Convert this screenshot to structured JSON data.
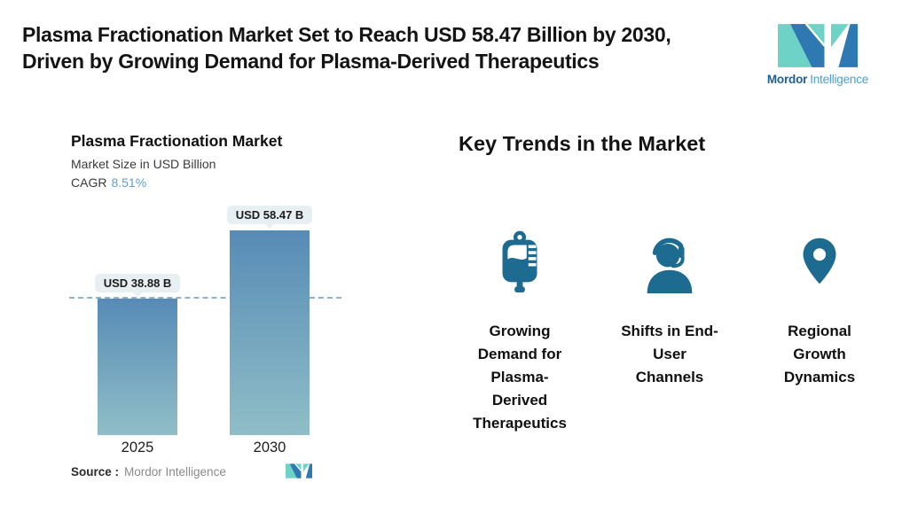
{
  "header": {
    "title_lines": [
      "Plasma Fractionation Market Set to Reach USD 58.47 Billion by 2030,",
      "Driven by Growing Demand for Plasma-Derived Therapeutics"
    ],
    "logo_bold": "Mordor",
    "logo_light": "Intelligence"
  },
  "chart": {
    "title": "Plasma Fractionation Market",
    "subtitle": "Market Size in USD Billion",
    "cagr_label": "CAGR",
    "cagr_value": "8.51%",
    "source_label": "Source :",
    "source_value": "Mordor Intelligence"
  },
  "chart_data": {
    "type": "bar",
    "title": "Plasma Fractionation Market",
    "subtitle": "Market Size in USD Billion",
    "categories": [
      "2025",
      "2030"
    ],
    "values": [
      38.88,
      58.47
    ],
    "value_labels": [
      "USD 38.88 B",
      "USD 58.47 B"
    ],
    "cagr_percent": 8.51,
    "ylim": [
      0,
      65
    ],
    "grid": false,
    "legend": "none",
    "annotations": [
      "horizontal dashed reference line at 2025 value (38.88)"
    ]
  },
  "trends": {
    "heading": "Key Trends in the Market",
    "items": [
      {
        "icon": "iv-blood-bag-icon",
        "label": "Growing Demand for Plasma-Derived Therapeutics",
        "label_lines": [
          "Growing",
          "Demand for",
          "Plasma-",
          "Derived",
          "Therapeutics"
        ]
      },
      {
        "icon": "headset-person-icon",
        "label": "Shifts in End-User Channels",
        "label_lines": [
          "Shifts in End-",
          "User",
          "Channels"
        ]
      },
      {
        "icon": "location-pin-icon",
        "label": "Regional Growth Dynamics",
        "label_lines": [
          "Regional",
          "Growth",
          "Dynamics"
        ]
      }
    ]
  },
  "colors": {
    "accent_steel_blue": "#1d6b91",
    "bar_gradient_top": "#578bb6",
    "bar_gradient_bottom": "#90bec7",
    "pill_background": "#e8eff2",
    "dashed_line": "#8ab3d2",
    "cagr_value_color": "#62a0ca",
    "logo_teal": "#6fd2c6",
    "logo_blue": "#2f79b2",
    "logo_text_dark": "#215f93",
    "logo_text_light": "#45a0d6",
    "source_gray": "#8a8a8a"
  }
}
